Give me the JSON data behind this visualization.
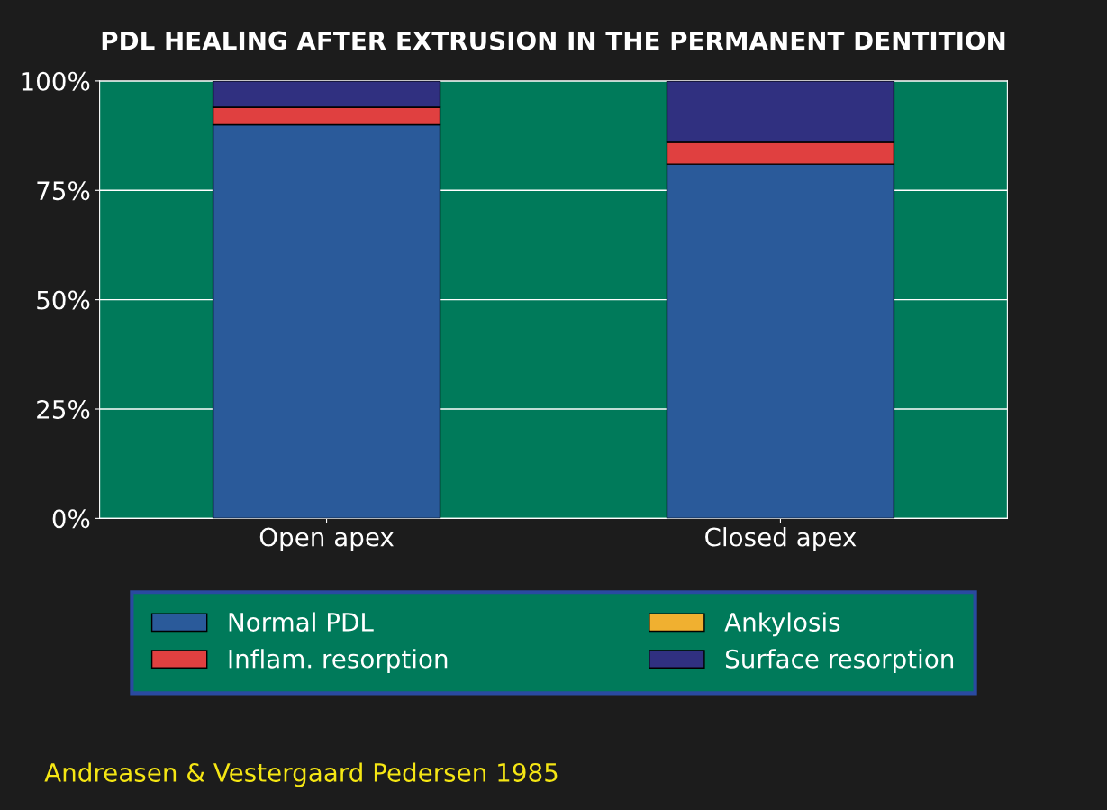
{
  "chart_data": {
    "type": "bar",
    "title": "PDL HEALING AFTER EXTRUSION IN THE PERMANENT DENTITION",
    "categories": [
      "Open apex",
      "Closed apex"
    ],
    "stacked": true,
    "series": [
      {
        "name": "Normal PDL",
        "color": "#2a5a9a",
        "values": [
          90,
          81
        ]
      },
      {
        "name": "Inflam. resorption",
        "color": "#e04040",
        "values": [
          4,
          5
        ]
      },
      {
        "name": "Ankylosis",
        "color": "#f0b030",
        "values": [
          0,
          0
        ]
      },
      {
        "name": "Surface resorption",
        "color": "#303080",
        "values": [
          6,
          14
        ]
      }
    ],
    "ylim": [
      0,
      100
    ],
    "yticks": [
      {
        "value": 0,
        "label": "0%"
      },
      {
        "value": 25,
        "label": "25%"
      },
      {
        "value": 50,
        "label": "50%"
      },
      {
        "value": 75,
        "label": "75%"
      },
      {
        "value": 100,
        "label": "100%"
      }
    ],
    "grid": "y",
    "legend": "bottom",
    "annotations": [
      "Andreasen & Vestergaard Pedersen 1985"
    ]
  }
}
